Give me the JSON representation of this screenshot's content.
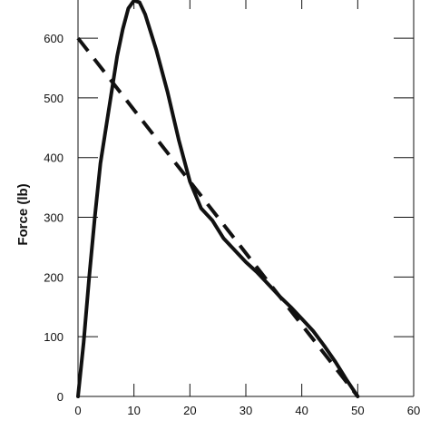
{
  "chart_data": {
    "type": "line",
    "title": "",
    "xlabel": "",
    "ylabel": "Force (lb)",
    "xlim": [
      0,
      60
    ],
    "ylim": [
      0,
      670
    ],
    "xticks": [
      0,
      10,
      20,
      30,
      40,
      50,
      60
    ],
    "yticks": [
      0,
      100,
      200,
      300,
      400,
      500,
      600
    ],
    "grid": false,
    "legend": "none",
    "series": [
      {
        "style": "solid",
        "color": "#111111",
        "x": [
          0,
          1,
          2,
          3,
          4,
          5,
          6,
          7,
          8,
          9,
          10,
          11,
          12,
          14,
          16,
          18,
          20,
          22,
          24,
          26,
          28,
          30,
          32,
          34,
          36,
          38,
          40,
          42,
          44,
          46,
          48,
          50
        ],
        "y": [
          0,
          90,
          200,
          300,
          390,
          450,
          510,
          570,
          615,
          650,
          663,
          660,
          640,
          580,
          510,
          430,
          360,
          315,
          295,
          265,
          245,
          225,
          208,
          188,
          168,
          150,
          130,
          110,
          85,
          58,
          28,
          0
        ]
      },
      {
        "style": "dashed",
        "color": "#111111",
        "x": [
          0,
          50
        ],
        "y": [
          600,
          0
        ]
      }
    ]
  }
}
